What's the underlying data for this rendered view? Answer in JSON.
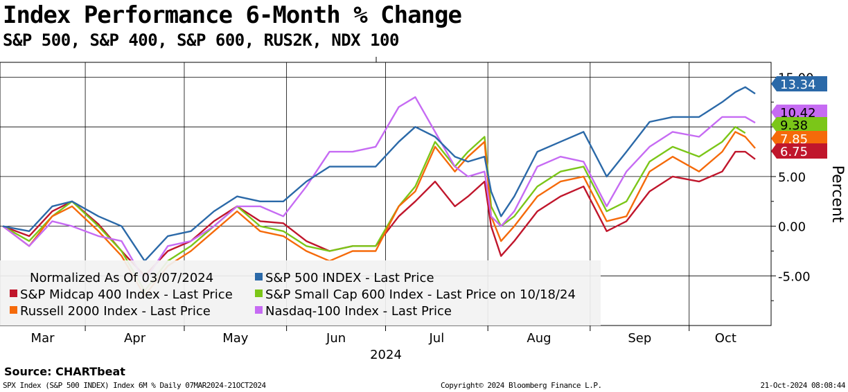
{
  "header": {
    "title": "Index Performance 6-Month % Change",
    "subtitle": "S&P 500, S&P 400, S&P 600, RUS2K, NDX 100"
  },
  "footer": {
    "source": "Source: CHARTbeat",
    "left": "SPX Index (S&P 500 INDEX) Index 6M %  Daily 07MAR2024-21OCT2024",
    "middle": "Copyright© 2024 Bloomberg Finance L.P.",
    "right": "21-Oct-2024 08:08:44"
  },
  "chart_data": {
    "type": "line",
    "title": "Index Performance 6-Month % Change",
    "subtitle": "S&P 500, S&P 400, S&P 600, RUS2K, NDX 100",
    "ylabel": "Percent",
    "xlabel": "2024",
    "ylim": [
      -10,
      15
    ],
    "yticks": [
      "15.00",
      "10.00",
      "5.00",
      "0.00",
      "-5.00"
    ],
    "xticks": [
      "Mar",
      "Apr",
      "May",
      "Jun",
      "Jul",
      "Aug",
      "Sep",
      "Oct"
    ],
    "x_start": "2024-03-07",
    "x_end": "2024-10-21",
    "grid": true,
    "legend_position": "bottom-left",
    "legend_note": "Normalized As Of 03/07/2024",
    "series": [
      {
        "name": "S&P Midcap 400 Index - Last Price",
        "color": "#c0162c",
        "last_label": "6.75",
        "points": [
          [
            "2024-03-07",
            0
          ],
          [
            "2024-03-15",
            -1
          ],
          [
            "2024-03-22",
            1.5
          ],
          [
            "2024-03-28",
            2.5
          ],
          [
            "2024-04-05",
            0.2
          ],
          [
            "2024-04-12",
            -2.5
          ],
          [
            "2024-04-19",
            -5
          ],
          [
            "2024-04-26",
            -2.5
          ],
          [
            "2024-05-03",
            -1.5
          ],
          [
            "2024-05-10",
            0.5
          ],
          [
            "2024-05-17",
            2
          ],
          [
            "2024-05-24",
            0.5
          ],
          [
            "2024-05-31",
            0.3
          ],
          [
            "2024-06-07",
            -1.5
          ],
          [
            "2024-06-14",
            -2.5
          ],
          [
            "2024-06-21",
            -2
          ],
          [
            "2024-06-28",
            -2
          ],
          [
            "2024-07-05",
            1
          ],
          [
            "2024-07-10",
            2.5
          ],
          [
            "2024-07-16",
            4.5
          ],
          [
            "2024-07-22",
            2
          ],
          [
            "2024-07-26",
            3
          ],
          [
            "2024-07-31",
            4.5
          ],
          [
            "2024-08-02",
            0
          ],
          [
            "2024-08-05",
            -3
          ],
          [
            "2024-08-09",
            -1.5
          ],
          [
            "2024-08-16",
            1.5
          ],
          [
            "2024-08-23",
            3
          ],
          [
            "2024-08-30",
            4
          ],
          [
            "2024-09-06",
            -0.5
          ],
          [
            "2024-09-12",
            0.5
          ],
          [
            "2024-09-19",
            3.5
          ],
          [
            "2024-09-26",
            5
          ],
          [
            "2024-10-04",
            4.5
          ],
          [
            "2024-10-11",
            5.5
          ],
          [
            "2024-10-15",
            7.5
          ],
          [
            "2024-10-18",
            7.5
          ],
          [
            "2024-10-21",
            6.75
          ]
        ]
      },
      {
        "name": "S&P Small Cap 600 Index - Last Price on 10/18/24",
        "color": "#7bc618",
        "last_label": "9.38",
        "points": [
          [
            "2024-03-07",
            0
          ],
          [
            "2024-03-15",
            -1.5
          ],
          [
            "2024-03-22",
            1
          ],
          [
            "2024-03-28",
            2.5
          ],
          [
            "2024-04-05",
            0
          ],
          [
            "2024-04-12",
            -2.5
          ],
          [
            "2024-04-19",
            -6.5
          ],
          [
            "2024-04-26",
            -3.5
          ],
          [
            "2024-05-03",
            -2
          ],
          [
            "2024-05-10",
            0
          ],
          [
            "2024-05-17",
            2
          ],
          [
            "2024-05-24",
            0
          ],
          [
            "2024-05-31",
            -0.5
          ],
          [
            "2024-06-07",
            -2
          ],
          [
            "2024-06-14",
            -2.5
          ],
          [
            "2024-06-21",
            -2
          ],
          [
            "2024-06-28",
            -2
          ],
          [
            "2024-07-05",
            2
          ],
          [
            "2024-07-10",
            4
          ],
          [
            "2024-07-16",
            8.5
          ],
          [
            "2024-07-22",
            6
          ],
          [
            "2024-07-26",
            7.5
          ],
          [
            "2024-07-31",
            9
          ],
          [
            "2024-08-02",
            2
          ],
          [
            "2024-08-05",
            0
          ],
          [
            "2024-08-09",
            1
          ],
          [
            "2024-08-16",
            4
          ],
          [
            "2024-08-23",
            5.5
          ],
          [
            "2024-08-30",
            6
          ],
          [
            "2024-09-06",
            1.5
          ],
          [
            "2024-09-12",
            2.5
          ],
          [
            "2024-09-19",
            6.5
          ],
          [
            "2024-09-26",
            8
          ],
          [
            "2024-10-04",
            7
          ],
          [
            "2024-10-11",
            8.5
          ],
          [
            "2024-10-15",
            10
          ],
          [
            "2024-10-18",
            9.38
          ]
        ]
      },
      {
        "name": "Russell 2000 Index - Last Price",
        "color": "#f56a0a",
        "last_label": "7.85",
        "points": [
          [
            "2024-03-07",
            0
          ],
          [
            "2024-03-15",
            -2
          ],
          [
            "2024-03-22",
            1
          ],
          [
            "2024-03-28",
            2
          ],
          [
            "2024-04-05",
            -0.5
          ],
          [
            "2024-04-12",
            -3
          ],
          [
            "2024-04-19",
            -7
          ],
          [
            "2024-04-26",
            -4
          ],
          [
            "2024-05-03",
            -2.5
          ],
          [
            "2024-05-10",
            -0.5
          ],
          [
            "2024-05-17",
            1.5
          ],
          [
            "2024-05-24",
            -0.5
          ],
          [
            "2024-05-31",
            -1
          ],
          [
            "2024-06-07",
            -2.5
          ],
          [
            "2024-06-14",
            -3.5
          ],
          [
            "2024-06-21",
            -2.5
          ],
          [
            "2024-06-28",
            -2.5
          ],
          [
            "2024-07-05",
            2
          ],
          [
            "2024-07-10",
            3.5
          ],
          [
            "2024-07-16",
            8
          ],
          [
            "2024-07-22",
            5.5
          ],
          [
            "2024-07-26",
            7
          ],
          [
            "2024-07-31",
            8.5
          ],
          [
            "2024-08-02",
            1
          ],
          [
            "2024-08-05",
            -1.5
          ],
          [
            "2024-08-09",
            0
          ],
          [
            "2024-08-16",
            3
          ],
          [
            "2024-08-23",
            4.5
          ],
          [
            "2024-08-30",
            5
          ],
          [
            "2024-09-06",
            0.5
          ],
          [
            "2024-09-12",
            1
          ],
          [
            "2024-09-19",
            5.5
          ],
          [
            "2024-09-26",
            7
          ],
          [
            "2024-10-04",
            5.5
          ],
          [
            "2024-10-11",
            7.5
          ],
          [
            "2024-10-15",
            9.5
          ],
          [
            "2024-10-18",
            9
          ],
          [
            "2024-10-21",
            7.85
          ]
        ]
      },
      {
        "name": "Nasdaq-100 Index - Last Price",
        "color": "#c66bf3",
        "last_label": "10.42",
        "points": [
          [
            "2024-03-07",
            0
          ],
          [
            "2024-03-15",
            -2
          ],
          [
            "2024-03-22",
            0.5
          ],
          [
            "2024-03-28",
            0
          ],
          [
            "2024-04-05",
            -1
          ],
          [
            "2024-04-12",
            -1.5
          ],
          [
            "2024-04-19",
            -5.5
          ],
          [
            "2024-04-26",
            -2
          ],
          [
            "2024-05-03",
            -1.5
          ],
          [
            "2024-05-10",
            0
          ],
          [
            "2024-05-17",
            2
          ],
          [
            "2024-05-24",
            2
          ],
          [
            "2024-05-31",
            1
          ],
          [
            "2024-06-07",
            4
          ],
          [
            "2024-06-14",
            7.5
          ],
          [
            "2024-06-21",
            7.5
          ],
          [
            "2024-06-28",
            8
          ],
          [
            "2024-07-05",
            12
          ],
          [
            "2024-07-10",
            13
          ],
          [
            "2024-07-16",
            9.5
          ],
          [
            "2024-07-22",
            6
          ],
          [
            "2024-07-26",
            5
          ],
          [
            "2024-07-31",
            5.5
          ],
          [
            "2024-08-02",
            1
          ],
          [
            "2024-08-05",
            0
          ],
          [
            "2024-08-09",
            1.5
          ],
          [
            "2024-08-16",
            6
          ],
          [
            "2024-08-23",
            7
          ],
          [
            "2024-08-30",
            6.5
          ],
          [
            "2024-09-06",
            2
          ],
          [
            "2024-09-12",
            5.5
          ],
          [
            "2024-09-19",
            8
          ],
          [
            "2024-09-26",
            9.5
          ],
          [
            "2024-10-04",
            9
          ],
          [
            "2024-10-11",
            11
          ],
          [
            "2024-10-15",
            11
          ],
          [
            "2024-10-18",
            11
          ],
          [
            "2024-10-21",
            10.42
          ]
        ]
      },
      {
        "name": "S&P 500 INDEX - Last Price",
        "color": "#2b69a8",
        "last_label": "13.34",
        "points": [
          [
            "2024-03-07",
            0
          ],
          [
            "2024-03-15",
            -0.5
          ],
          [
            "2024-03-22",
            2
          ],
          [
            "2024-03-28",
            2.5
          ],
          [
            "2024-04-05",
            1
          ],
          [
            "2024-04-12",
            0
          ],
          [
            "2024-04-19",
            -3.5
          ],
          [
            "2024-04-26",
            -1
          ],
          [
            "2024-05-03",
            -0.5
          ],
          [
            "2024-05-10",
            1.5
          ],
          [
            "2024-05-17",
            3
          ],
          [
            "2024-05-24",
            2.5
          ],
          [
            "2024-05-31",
            2.5
          ],
          [
            "2024-06-07",
            4.5
          ],
          [
            "2024-06-14",
            6
          ],
          [
            "2024-06-21",
            6
          ],
          [
            "2024-06-28",
            6
          ],
          [
            "2024-07-05",
            8.5
          ],
          [
            "2024-07-10",
            10
          ],
          [
            "2024-07-16",
            9
          ],
          [
            "2024-07-22",
            7
          ],
          [
            "2024-07-26",
            6.5
          ],
          [
            "2024-07-31",
            7
          ],
          [
            "2024-08-02",
            3.5
          ],
          [
            "2024-08-05",
            1
          ],
          [
            "2024-08-09",
            3
          ],
          [
            "2024-08-16",
            7.5
          ],
          [
            "2024-08-23",
            8.5
          ],
          [
            "2024-08-30",
            9.5
          ],
          [
            "2024-09-06",
            5
          ],
          [
            "2024-09-12",
            7.5
          ],
          [
            "2024-09-19",
            10.5
          ],
          [
            "2024-09-26",
            11
          ],
          [
            "2024-10-04",
            11
          ],
          [
            "2024-10-11",
            12.5
          ],
          [
            "2024-10-15",
            13.5
          ],
          [
            "2024-10-18",
            14
          ],
          [
            "2024-10-21",
            13.34
          ]
        ]
      }
    ]
  }
}
